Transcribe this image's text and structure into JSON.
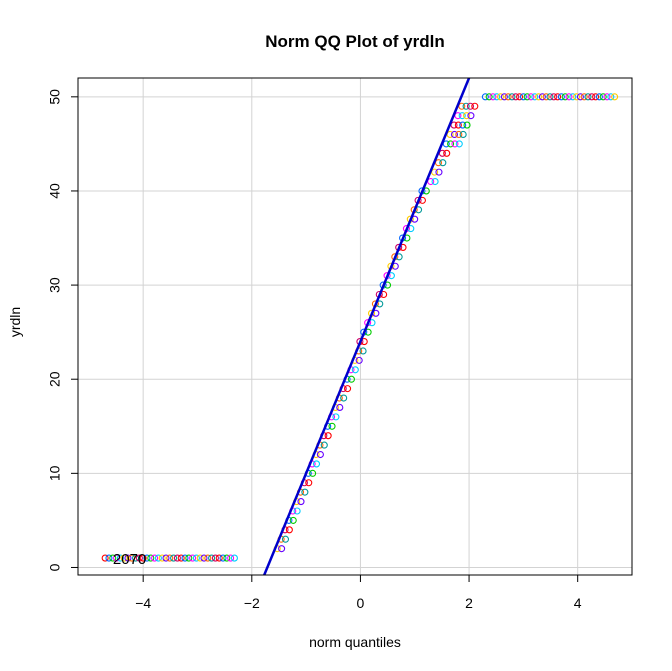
{
  "chart_data": {
    "type": "scatter",
    "title": "Norm QQ Plot of yrdln",
    "xlabel": "norm quantiles",
    "ylabel": "yrdln",
    "xlim": [
      -5.2,
      5.0
    ],
    "ylim": [
      -0.8,
      52
    ],
    "xticks": [
      -4,
      -2,
      0,
      2,
      4
    ],
    "yticks": [
      0,
      10,
      20,
      30,
      40,
      50
    ],
    "grid": true,
    "reference_line": {
      "intercept": 24.0,
      "slope": 14.0,
      "color": "#0000cc"
    },
    "annotation": {
      "text": "2070",
      "x": -4.25,
      "y": 1
    },
    "point_colors": [
      "#ff0000",
      "#0066ff",
      "#00cc00",
      "#ff00ff",
      "#00ccff",
      "#ffcc00",
      "#6600ff",
      "#ff6600",
      "#009999",
      "#cc0066"
    ],
    "points": {
      "low_plateau": {
        "y": 1,
        "x_from": -4.7,
        "x_to": -2.3
      },
      "rising": {
        "x_from": -2.25,
        "x_to": 1.9,
        "y_from": 2,
        "y_to": 49
      },
      "high_plateau": {
        "y": 50,
        "x_from": 2.3,
        "x_to": 4.7
      }
    }
  }
}
